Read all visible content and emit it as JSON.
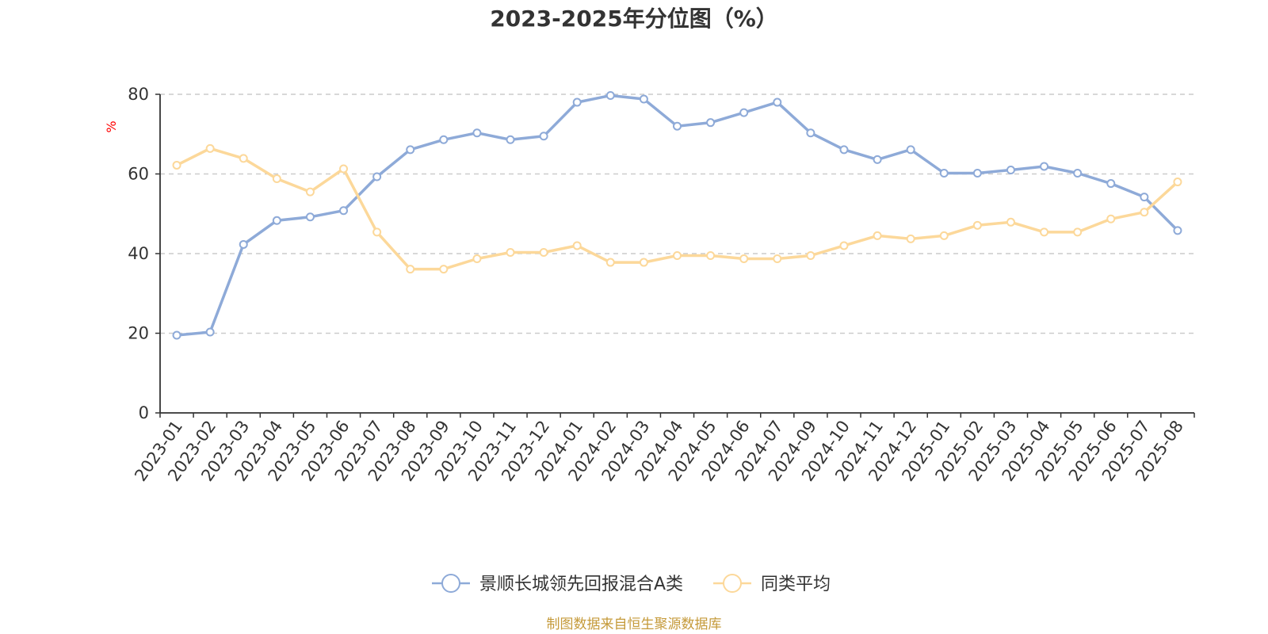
{
  "chart_data": {
    "type": "line",
    "title": "2023-2025年分位图（%）",
    "ylabel": "%",
    "ylim": [
      0,
      80
    ],
    "yticks": [
      0,
      20,
      40,
      60,
      80
    ],
    "grid": "horizontal-dashed",
    "legend_position": "bottom",
    "categories": [
      "2023-01",
      "2023-02",
      "2023-03",
      "2023-04",
      "2023-05",
      "2023-06",
      "2023-07",
      "2023-08",
      "2023-09",
      "2023-10",
      "2023-11",
      "2023-12",
      "2024-01",
      "2024-02",
      "2024-03",
      "2024-04",
      "2024-05",
      "2024-06",
      "2024-07",
      "2024-09",
      "2024-10",
      "2024-11",
      "2024-12",
      "2025-01",
      "2025-02",
      "2025-03",
      "2025-04",
      "2025-05",
      "2025-06",
      "2025-07",
      "2025-08"
    ],
    "series": [
      {
        "name": "景顺长城领先回报混合A类",
        "color": "#8eaad8",
        "values": [
          19.5,
          20.3,
          42.3,
          48.3,
          49.2,
          50.8,
          59.3,
          66.1,
          68.6,
          70.3,
          68.6,
          69.5,
          78.0,
          79.7,
          78.8,
          72.0,
          72.9,
          75.4,
          78.0,
          70.3,
          66.1,
          63.6,
          66.1,
          60.2,
          60.2,
          61.0,
          61.9,
          60.2,
          57.6,
          54.2,
          45.8
        ]
      },
      {
        "name": "同类平均",
        "color": "#fcd89a",
        "values": [
          62.2,
          66.4,
          63.9,
          58.8,
          55.5,
          61.3,
          45.4,
          36.1,
          36.1,
          38.7,
          40.3,
          40.3,
          42.0,
          37.8,
          37.8,
          39.5,
          39.5,
          38.7,
          38.7,
          39.5,
          42.0,
          44.5,
          43.7,
          44.5,
          47.1,
          47.9,
          45.4,
          45.4,
          48.7,
          50.4,
          58.0
        ]
      }
    ]
  },
  "source_text": "制图数据来自恒生聚源数据库"
}
